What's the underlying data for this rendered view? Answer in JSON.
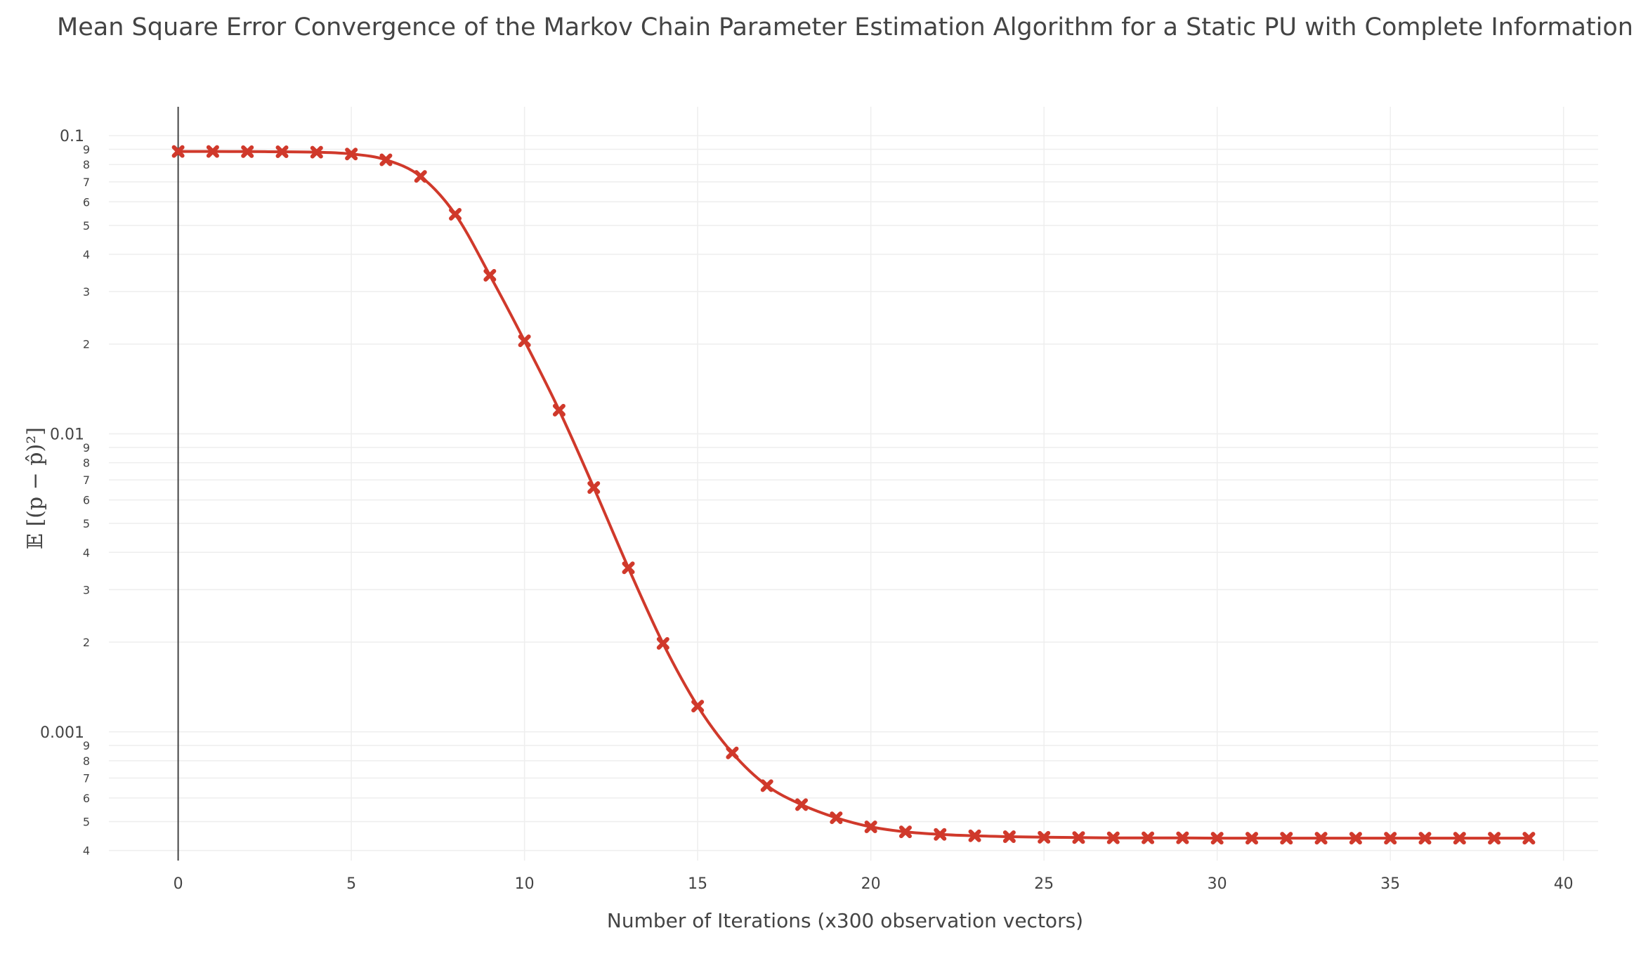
{
  "chart_data": {
    "type": "line",
    "title": "Mean Square Error Convergence of the Markov Chain Parameter Estimation Algorithm for a Static PU with Complete Information",
    "xlabel": "Number of Iterations (x300 observation vectors)",
    "ylabel": "𝔼 [(p − p̂)²]",
    "xlim": [
      -2,
      41
    ],
    "ylim": [
      0.00037,
      0.125
    ],
    "yscale": "log",
    "grid": true,
    "x_ticks": [
      "0",
      "5",
      "10",
      "15",
      "20",
      "25",
      "30",
      "35",
      "40"
    ],
    "x_tick_values": [
      0,
      5,
      10,
      15,
      20,
      25,
      30,
      35,
      40
    ],
    "y_major_ticks": [
      {
        "value": 0.1,
        "label": "0.1"
      },
      {
        "value": 0.01,
        "label": "0.01"
      },
      {
        "value": 0.001,
        "label": "0.001"
      }
    ],
    "y_minor_ticks": [
      {
        "value": 0.09,
        "label": "9"
      },
      {
        "value": 0.08,
        "label": "8"
      },
      {
        "value": 0.07,
        "label": "7"
      },
      {
        "value": 0.06,
        "label": "6"
      },
      {
        "value": 0.05,
        "label": "5"
      },
      {
        "value": 0.04,
        "label": "4"
      },
      {
        "value": 0.03,
        "label": "3"
      },
      {
        "value": 0.02,
        "label": "2"
      },
      {
        "value": 0.009,
        "label": "9"
      },
      {
        "value": 0.008,
        "label": "8"
      },
      {
        "value": 0.007,
        "label": "7"
      },
      {
        "value": 0.006,
        "label": "6"
      },
      {
        "value": 0.005,
        "label": "5"
      },
      {
        "value": 0.004,
        "label": "4"
      },
      {
        "value": 0.003,
        "label": "3"
      },
      {
        "value": 0.002,
        "label": "2"
      },
      {
        "value": 0.0009,
        "label": "9"
      },
      {
        "value": 0.0008,
        "label": "8"
      },
      {
        "value": 0.0007,
        "label": "7"
      },
      {
        "value": 0.0006,
        "label": "6"
      },
      {
        "value": 0.0005,
        "label": "5"
      },
      {
        "value": 0.0004,
        "label": "4"
      }
    ],
    "series": [
      {
        "color": "#d0392b",
        "marker": "x",
        "x": [
          0,
          1,
          2,
          3,
          4,
          5,
          6,
          7,
          8,
          9,
          10,
          11,
          12,
          13,
          14,
          15,
          16,
          17,
          18,
          19,
          20,
          21,
          22,
          23,
          24,
          25,
          26,
          27,
          28,
          29,
          30,
          31,
          32,
          33,
          34,
          35,
          36,
          37,
          38,
          39
        ],
        "y": [
          0.0885,
          0.0885,
          0.0884,
          0.0883,
          0.088,
          0.0868,
          0.083,
          0.073,
          0.0545,
          0.034,
          0.0205,
          0.012,
          0.0066,
          0.00355,
          0.00198,
          0.00122,
          0.00085,
          0.00066,
          0.00057,
          0.000515,
          0.00048,
          0.000462,
          0.000453,
          0.000448,
          0.000445,
          0.000443,
          0.000442,
          0.000441,
          0.000441,
          0.000441,
          0.00044,
          0.00044,
          0.00044,
          0.00044,
          0.00044,
          0.00044,
          0.00044,
          0.00044,
          0.00044,
          0.00044
        ]
      }
    ]
  }
}
